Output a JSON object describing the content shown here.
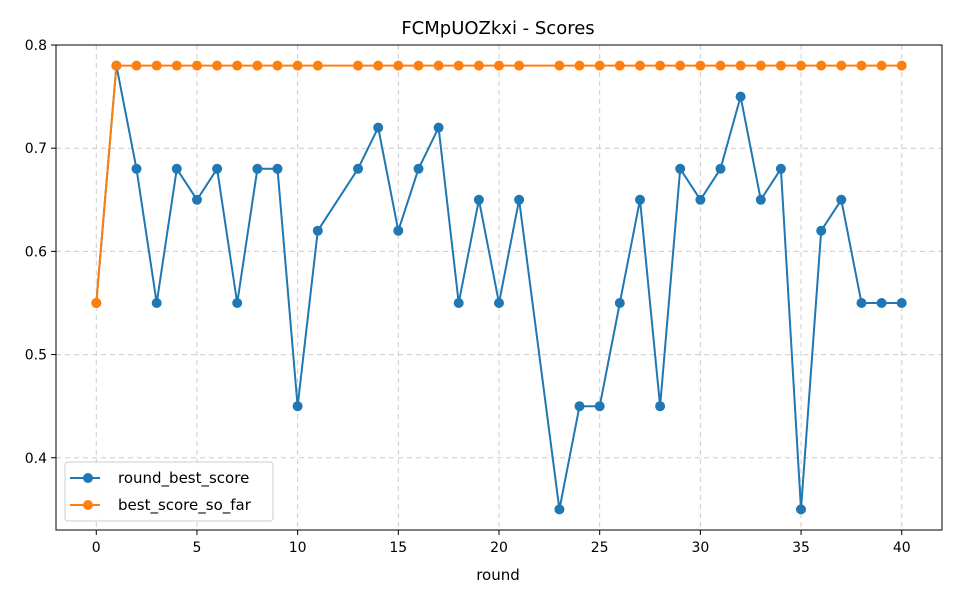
{
  "chart_data": {
    "type": "line",
    "title": "FCMpUOZkxi - Scores",
    "xlabel": "round",
    "ylabel": "",
    "xlim": [
      -2,
      42
    ],
    "ylim": [
      0.33,
      0.8
    ],
    "x_ticks": [
      0,
      5,
      10,
      15,
      20,
      25,
      30,
      35,
      40
    ],
    "y_ticks": [
      0.4,
      0.5,
      0.6,
      0.7,
      0.8
    ],
    "grid": true,
    "legend_position": "lower-left",
    "series": [
      {
        "name": "round_best_score",
        "color": "#1f77b4",
        "x": [
          0,
          1,
          2,
          3,
          4,
          5,
          6,
          7,
          8,
          9,
          10,
          11,
          13,
          14,
          15,
          16,
          17,
          18,
          19,
          20,
          21,
          23,
          24,
          25,
          26,
          27,
          28,
          29,
          30,
          31,
          32,
          33,
          34,
          35,
          36,
          37,
          38,
          39,
          40
        ],
        "y": [
          0.55,
          0.78,
          0.68,
          0.55,
          0.68,
          0.65,
          0.68,
          0.55,
          0.68,
          0.68,
          0.45,
          0.62,
          0.68,
          0.72,
          0.62,
          0.68,
          0.72,
          0.55,
          0.65,
          0.55,
          0.65,
          0.35,
          0.45,
          0.45,
          0.55,
          0.65,
          0.45,
          0.68,
          0.65,
          0.68,
          0.75,
          0.65,
          0.68,
          0.35,
          0.62,
          0.65,
          0.55,
          0.55,
          0.55
        ]
      },
      {
        "name": "best_score_so_far",
        "color": "#ff7f0e",
        "x": [
          0,
          1,
          2,
          3,
          4,
          5,
          6,
          7,
          8,
          9,
          10,
          11,
          13,
          14,
          15,
          16,
          17,
          18,
          19,
          20,
          21,
          23,
          24,
          25,
          26,
          27,
          28,
          29,
          30,
          31,
          32,
          33,
          34,
          35,
          36,
          37,
          38,
          39,
          40
        ],
        "y": [
          0.55,
          0.78,
          0.78,
          0.78,
          0.78,
          0.78,
          0.78,
          0.78,
          0.78,
          0.78,
          0.78,
          0.78,
          0.78,
          0.78,
          0.78,
          0.78,
          0.78,
          0.78,
          0.78,
          0.78,
          0.78,
          0.78,
          0.78,
          0.78,
          0.78,
          0.78,
          0.78,
          0.78,
          0.78,
          0.78,
          0.78,
          0.78,
          0.78,
          0.78,
          0.78,
          0.78,
          0.78,
          0.78,
          0.78
        ]
      }
    ]
  }
}
